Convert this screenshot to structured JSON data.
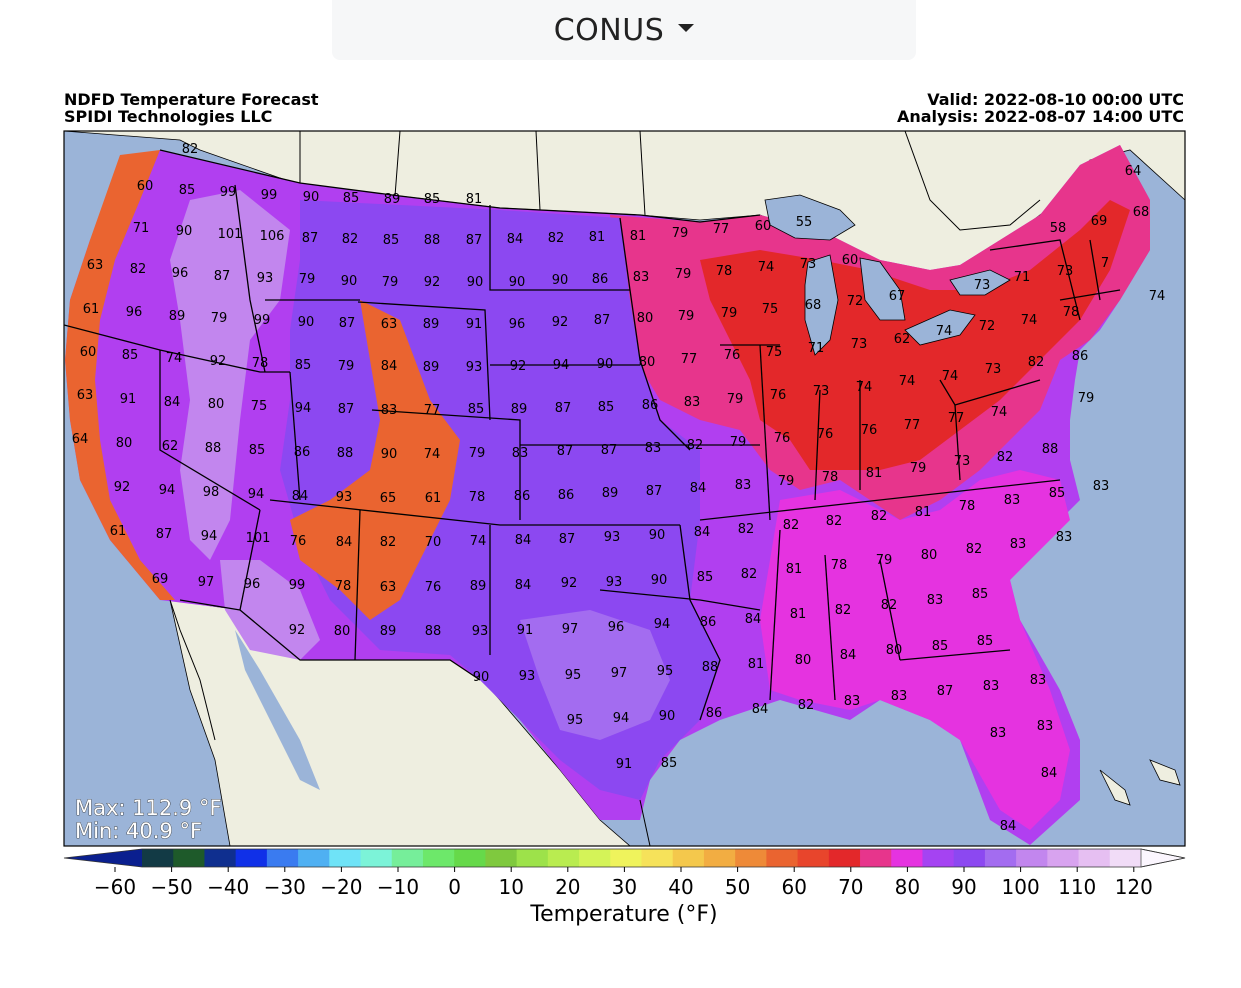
{
  "region_selector": {
    "value": "CONUS"
  },
  "header": {
    "title": "NDFD Temperature Forecast",
    "source": "SPIDI Technologies LLC",
    "valid": "Valid: 2022-08-10 00:00 UTC",
    "analysis": "Analysis: 2022-08-07 14:00 UTC"
  },
  "stats": {
    "max": "Max: 112.9 °F",
    "min": "Min: 40.9 °F"
  },
  "colorbar": {
    "title": "Temperature (°F)",
    "ticks": [
      "−60",
      "−50",
      "−40",
      "−30",
      "−20",
      "−10",
      "0",
      "10",
      "20",
      "30",
      "40",
      "50",
      "60",
      "70",
      "80",
      "90",
      "100",
      "110",
      "120"
    ],
    "colors": [
      "#0a1f8f",
      "#123a45",
      "#1e5a2a",
      "#0f2f8f",
      "#1030e8",
      "#3a7bf0",
      "#4fb0f2",
      "#6fe3f7",
      "#7cf3d8",
      "#76ee9a",
      "#6de86a",
      "#66d94a",
      "#7fc93e",
      "#9de24a",
      "#b9ec50",
      "#d4f358",
      "#eff35c",
      "#f6e25a",
      "#f4c84c",
      "#f2ad42",
      "#ee8a38",
      "#ea6430",
      "#e8452c",
      "#e3282a",
      "#e7358c",
      "#e533e0",
      "#a543f2",
      "#8c48f1",
      "#a36cf0",
      "#c286ee",
      "#d8a3ef",
      "#e6bff2",
      "#f1dcf7",
      "#fbf6fe"
    ]
  },
  "map_colors": {
    "ocean": "#9bb4d8",
    "land": "#eeeee0",
    "lakes": "#9bb4d8",
    "t60": "#ea6430",
    "t70": "#e3282a",
    "t75": "#e7358c",
    "t80": "#e533e0",
    "t85": "#b13ff0",
    "t90": "#8c48f1",
    "t95": "#a36cf0",
    "t100": "#c286ee"
  },
  "points": [
    [
      "82",
      190,
      153
    ],
    [
      "85",
      187,
      194
    ],
    [
      "99",
      228,
      196
    ],
    [
      "99",
      269,
      199
    ],
    [
      "90",
      311,
      201
    ],
    [
      "85",
      351,
      202
    ],
    [
      "89",
      392,
      203
    ],
    [
      "85",
      432,
      203
    ],
    [
      "81",
      474,
      203
    ],
    [
      "60",
      145,
      190
    ],
    [
      "71",
      141,
      232
    ],
    [
      "90",
      184,
      235
    ],
    [
      "101",
      230,
      238
    ],
    [
      "106",
      272,
      240
    ],
    [
      "87",
      310,
      242
    ],
    [
      "82",
      350,
      243
    ],
    [
      "85",
      391,
      244
    ],
    [
      "88",
      432,
      244
    ],
    [
      "87",
      474,
      244
    ],
    [
      "84",
      515,
      243
    ],
    [
      "82",
      556,
      242
    ],
    [
      "81",
      597,
      241
    ],
    [
      "81",
      638,
      240
    ],
    [
      "79",
      680,
      237
    ],
    [
      "77",
      721,
      233
    ],
    [
      "60",
      763,
      230
    ],
    [
      "55",
      804,
      226
    ],
    [
      "63",
      95,
      269
    ],
    [
      "82",
      138,
      273
    ],
    [
      "96",
      180,
      277
    ],
    [
      "87",
      222,
      280
    ],
    [
      "93",
      265,
      282
    ],
    [
      "79",
      307,
      283
    ],
    [
      "90",
      349,
      285
    ],
    [
      "79",
      390,
      286
    ],
    [
      "92",
      432,
      286
    ],
    [
      "90",
      475,
      286
    ],
    [
      "90",
      517,
      286
    ],
    [
      "90",
      560,
      284
    ],
    [
      "86",
      600,
      283
    ],
    [
      "83",
      641,
      281
    ],
    [
      "79",
      683,
      278
    ],
    [
      "78",
      724,
      275
    ],
    [
      "74",
      766,
      271
    ],
    [
      "73",
      808,
      268
    ],
    [
      "60",
      850,
      264
    ],
    [
      "71",
      1022,
      281
    ],
    [
      "73",
      1065,
      275
    ],
    [
      "7",
      1105,
      267
    ],
    [
      "69",
      1099,
      225
    ],
    [
      "64",
      1133,
      175
    ],
    [
      "68",
      1141,
      216
    ],
    [
      "58",
      1058,
      232
    ],
    [
      "74",
      1157,
      300
    ],
    [
      "73",
      982,
      289
    ],
    [
      "61",
      91,
      313
    ],
    [
      "96",
      134,
      316
    ],
    [
      "89",
      177,
      320
    ],
    [
      "79",
      219,
      322
    ],
    [
      "99",
      262,
      324
    ],
    [
      "90",
      306,
      326
    ],
    [
      "87",
      347,
      327
    ],
    [
      "63",
      389,
      328
    ],
    [
      "89",
      431,
      328
    ],
    [
      "91",
      474,
      328
    ],
    [
      "96",
      517,
      328
    ],
    [
      "92",
      560,
      326
    ],
    [
      "87",
      602,
      324
    ],
    [
      "80",
      645,
      322
    ],
    [
      "79",
      686,
      320
    ],
    [
      "79",
      729,
      317
    ],
    [
      "75",
      770,
      313
    ],
    [
      "68",
      813,
      309
    ],
    [
      "72",
      855,
      305
    ],
    [
      "67",
      897,
      300
    ],
    [
      "72",
      987,
      330
    ],
    [
      "74",
      1029,
      324
    ],
    [
      "78",
      1071,
      316
    ],
    [
      "60",
      88,
      356
    ],
    [
      "85",
      130,
      359
    ],
    [
      "74",
      174,
      362
    ],
    [
      "92",
      218,
      365
    ],
    [
      "78",
      260,
      367
    ],
    [
      "85",
      303,
      369
    ],
    [
      "79",
      346,
      370
    ],
    [
      "84",
      389,
      370
    ],
    [
      "89",
      431,
      371
    ],
    [
      "93",
      474,
      371
    ],
    [
      "92",
      518,
      370
    ],
    [
      "94",
      561,
      369
    ],
    [
      "90",
      605,
      368
    ],
    [
      "80",
      647,
      366
    ],
    [
      "77",
      689,
      363
    ],
    [
      "76",
      732,
      359
    ],
    [
      "75",
      774,
      356
    ],
    [
      "71",
      816,
      352
    ],
    [
      "73",
      859,
      348
    ],
    [
      "62",
      902,
      343
    ],
    [
      "74",
      944,
      335
    ],
    [
      "73",
      993,
      373
    ],
    [
      "82",
      1036,
      366
    ],
    [
      "86",
      1080,
      360
    ],
    [
      "63",
      85,
      399
    ],
    [
      "91",
      128,
      403
    ],
    [
      "84",
      172,
      406
    ],
    [
      "80",
      216,
      408
    ],
    [
      "75",
      259,
      410
    ],
    [
      "94",
      303,
      412
    ],
    [
      "87",
      346,
      413
    ],
    [
      "83",
      389,
      414
    ],
    [
      "77",
      432,
      414
    ],
    [
      "85",
      476,
      413
    ],
    [
      "89",
      519,
      413
    ],
    [
      "87",
      563,
      412
    ],
    [
      "85",
      606,
      411
    ],
    [
      "86",
      650,
      409
    ],
    [
      "83",
      692,
      406
    ],
    [
      "79",
      735,
      403
    ],
    [
      "76",
      778,
      399
    ],
    [
      "73",
      821,
      395
    ],
    [
      "74",
      864,
      391
    ],
    [
      "74",
      907,
      385
    ],
    [
      "74",
      950,
      380
    ],
    [
      "77",
      956,
      422
    ],
    [
      "74",
      999,
      416
    ],
    [
      "79",
      1086,
      402
    ],
    [
      "64",
      80,
      443
    ],
    [
      "80",
      124,
      447
    ],
    [
      "62",
      170,
      450
    ],
    [
      "88",
      213,
      452
    ],
    [
      "85",
      257,
      454
    ],
    [
      "86",
      302,
      456
    ],
    [
      "88",
      345,
      457
    ],
    [
      "90",
      389,
      458
    ],
    [
      "74",
      432,
      458
    ],
    [
      "79",
      477,
      457
    ],
    [
      "83",
      520,
      457
    ],
    [
      "87",
      565,
      455
    ],
    [
      "87",
      609,
      454
    ],
    [
      "83",
      653,
      452
    ],
    [
      "82",
      695,
      449
    ],
    [
      "79",
      738,
      446
    ],
    [
      "76",
      782,
      442
    ],
    [
      "76",
      825,
      438
    ],
    [
      "76",
      869,
      434
    ],
    [
      "77",
      912,
      429
    ],
    [
      "73",
      962,
      465
    ],
    [
      "82",
      1005,
      461
    ],
    [
      "88",
      1050,
      453
    ],
    [
      "92",
      122,
      491
    ],
    [
      "94",
      167,
      494
    ],
    [
      "98",
      211,
      496
    ],
    [
      "94",
      256,
      498
    ],
    [
      "84",
      300,
      500
    ],
    [
      "93",
      344,
      501
    ],
    [
      "65",
      388,
      502
    ],
    [
      "61",
      433,
      502
    ],
    [
      "78",
      477,
      501
    ],
    [
      "86",
      522,
      500
    ],
    [
      "86",
      566,
      499
    ],
    [
      "89",
      610,
      497
    ],
    [
      "87",
      654,
      495
    ],
    [
      "84",
      698,
      492
    ],
    [
      "83",
      743,
      489
    ],
    [
      "79",
      786,
      485
    ],
    [
      "78",
      830,
      481
    ],
    [
      "81",
      874,
      477
    ],
    [
      "79",
      918,
      472
    ],
    [
      "78",
      967,
      510
    ],
    [
      "83",
      1012,
      504
    ],
    [
      "85",
      1057,
      497
    ],
    [
      "83",
      1101,
      490
    ],
    [
      "61",
      118,
      535
    ],
    [
      "87",
      164,
      538
    ],
    [
      "94",
      209,
      540
    ],
    [
      "101",
      258,
      542
    ],
    [
      "76",
      298,
      545
    ],
    [
      "84",
      344,
      546
    ],
    [
      "82",
      388,
      546
    ],
    [
      "70",
      433,
      546
    ],
    [
      "74",
      478,
      545
    ],
    [
      "84",
      523,
      544
    ],
    [
      "87",
      567,
      543
    ],
    [
      "93",
      612,
      541
    ],
    [
      "90",
      657,
      539
    ],
    [
      "84",
      702,
      536
    ],
    [
      "82",
      746,
      533
    ],
    [
      "82",
      791,
      529
    ],
    [
      "82",
      834,
      525
    ],
    [
      "82",
      879,
      520
    ],
    [
      "81",
      923,
      516
    ],
    [
      "82",
      974,
      553
    ],
    [
      "83",
      1018,
      548
    ],
    [
      "83",
      1064,
      541
    ],
    [
      "69",
      160,
      583
    ],
    [
      "97",
      206,
      586
    ],
    [
      "96",
      252,
      588
    ],
    [
      "99",
      297,
      589
    ],
    [
      "78",
      343,
      590
    ],
    [
      "63",
      388,
      591
    ],
    [
      "76",
      433,
      591
    ],
    [
      "89",
      478,
      590
    ],
    [
      "84",
      523,
      589
    ],
    [
      "92",
      569,
      587
    ],
    [
      "93",
      614,
      586
    ],
    [
      "90",
      659,
      584
    ],
    [
      "85",
      705,
      581
    ],
    [
      "82",
      749,
      578
    ],
    [
      "81",
      794,
      573
    ],
    [
      "78",
      839,
      569
    ],
    [
      "79",
      884,
      564
    ],
    [
      "80",
      929,
      559
    ],
    [
      "83",
      935,
      604
    ],
    [
      "85",
      980,
      598
    ],
    [
      "92",
      297,
      634
    ],
    [
      "80",
      342,
      635
    ],
    [
      "89",
      388,
      635
    ],
    [
      "88",
      433,
      635
    ],
    [
      "93",
      480,
      635
    ],
    [
      "91",
      525,
      634
    ],
    [
      "97",
      570,
      633
    ],
    [
      "96",
      616,
      631
    ],
    [
      "94",
      662,
      628
    ],
    [
      "86",
      708,
      626
    ],
    [
      "84",
      753,
      623
    ],
    [
      "81",
      798,
      618
    ],
    [
      "82",
      843,
      614
    ],
    [
      "82",
      889,
      609
    ],
    [
      "85",
      940,
      650
    ],
    [
      "85",
      985,
      645
    ],
    [
      "90",
      481,
      681
    ],
    [
      "93",
      527,
      680
    ],
    [
      "95",
      573,
      679
    ],
    [
      "97",
      619,
      677
    ],
    [
      "95",
      665,
      675
    ],
    [
      "88",
      710,
      671
    ],
    [
      "81",
      756,
      668
    ],
    [
      "80",
      803,
      664
    ],
    [
      "84",
      848,
      659
    ],
    [
      "80",
      894,
      654
    ],
    [
      "87",
      945,
      695
    ],
    [
      "83",
      991,
      690
    ],
    [
      "83",
      1038,
      684
    ],
    [
      "95",
      575,
      724
    ],
    [
      "94",
      621,
      722
    ],
    [
      "90",
      667,
      720
    ],
    [
      "86",
      714,
      717
    ],
    [
      "84",
      760,
      713
    ],
    [
      "82",
      806,
      709
    ],
    [
      "83",
      852,
      705
    ],
    [
      "83",
      899,
      700
    ],
    [
      "83",
      998,
      737
    ],
    [
      "83",
      1045,
      730
    ],
    [
      "91",
      624,
      768
    ],
    [
      "85",
      669,
      767
    ],
    [
      "84",
      1049,
      777
    ],
    [
      "84",
      1008,
      830
    ]
  ]
}
